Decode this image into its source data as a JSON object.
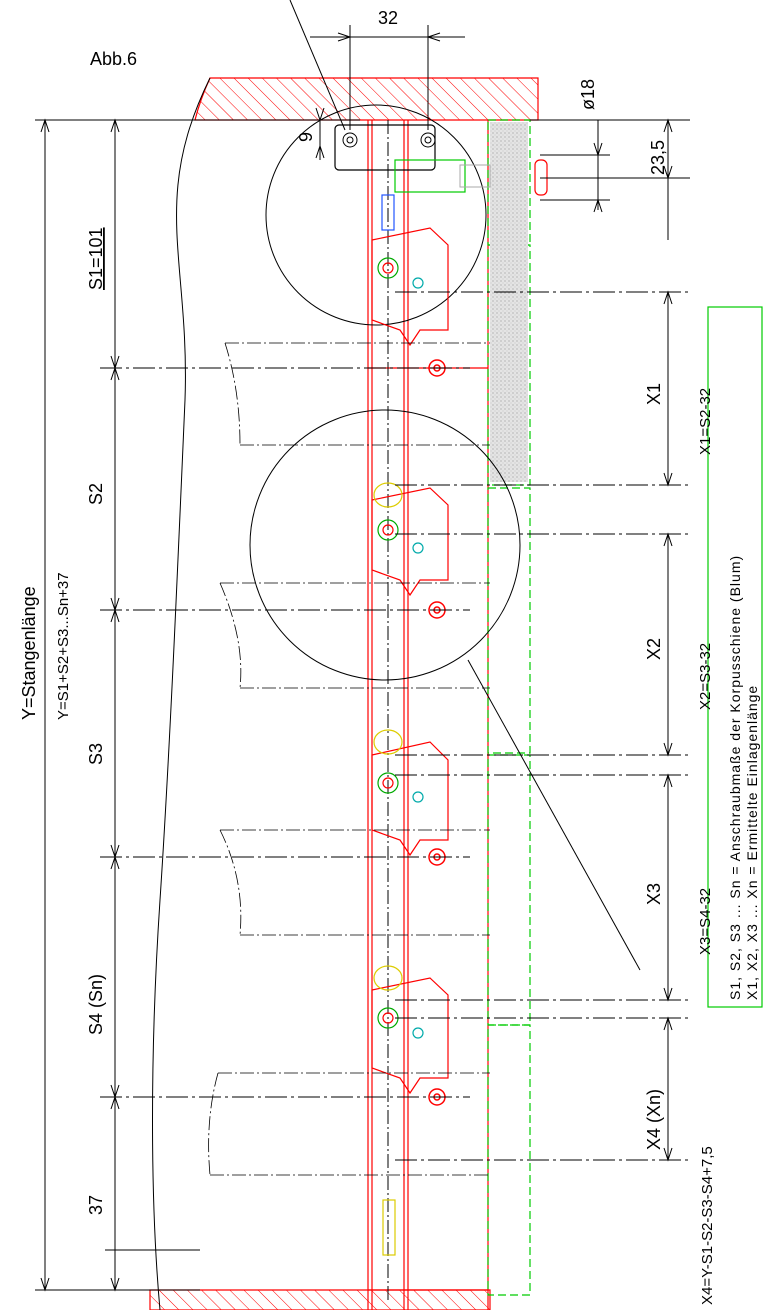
{
  "labels": {
    "figure": "Abb.6",
    "dim_32": "32",
    "dim_9": "9",
    "dim_d18": "ø18",
    "dim_23_5": "23,5",
    "s1": "S1=101",
    "s2": "S2",
    "s3": "S3",
    "s4": "S4 (Sn)",
    "dim_37": "37",
    "y_title": "Y=Stangenlänge",
    "y_formula": "Y=S1+S2+S3...Sn+37",
    "x1": "X1",
    "x2": "X2",
    "x3": "X3",
    "x4": "X4 (Xn)",
    "x1_formula": "X1=S2-32",
    "x2_formula": "X2=S3-32",
    "x3_formula": "X3=S4-32",
    "x4_formula": "X4=Y-S1-S2-S3-S4+7,5"
  },
  "legend": {
    "line1": "S1, S2, S3 ... Sn = Anschraubmaße der Korpusschiene (Blum)",
    "line2": "X1, X2, X3 ... Xn = Ermittelte Einlagenlänge"
  },
  "colors": {
    "outline": "#ff0000",
    "insert": "#00cc00",
    "hinge_dot": "#00aaaa",
    "cap": "#ffee00",
    "blue_part": "#2255ff",
    "hatch": "#ff0000",
    "legend_border": "#00cc00"
  }
}
